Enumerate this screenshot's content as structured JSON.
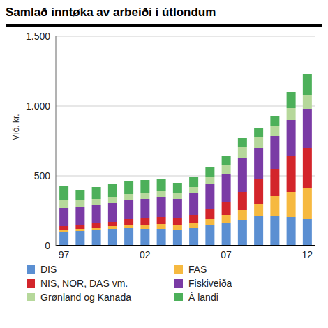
{
  "chart_data": {
    "type": "bar",
    "title": "Samlað inntøka av arbeiði í útlondum",
    "y_label": "Mió. kr.",
    "stacked": true,
    "grid": true,
    "legend": "bottom",
    "categories": [
      "97",
      null,
      null,
      null,
      null,
      "02",
      null,
      null,
      null,
      null,
      "07",
      null,
      null,
      null,
      null,
      "12"
    ],
    "ylim": [
      0,
      1500
    ],
    "yticks": [
      0,
      500,
      {
        "value": 1000,
        "label": "1.000"
      },
      {
        "value": 1500,
        "label": "1.500"
      }
    ],
    "series": [
      {
        "name": "DIS",
        "color": "#5b8fd2",
        "values": [
          100,
          105,
          115,
          120,
          125,
          120,
          120,
          115,
          125,
          145,
          160,
          185,
          210,
          215,
          205,
          190
        ]
      },
      {
        "name": "FAS",
        "color": "#f6b940",
        "values": [
          15,
          15,
          15,
          20,
          25,
          30,
          35,
          35,
          40,
          45,
          60,
          70,
          90,
          140,
          180,
          220
        ]
      },
      {
        "name": "NIS, NOR, DAS vm.",
        "color": "#d3252b",
        "values": [
          25,
          25,
          30,
          30,
          40,
          45,
          50,
          50,
          55,
          70,
          90,
          130,
          175,
          195,
          255,
          290
        ]
      },
      {
        "name": "Fiskiveiða",
        "color": "#7a3ba5",
        "values": [
          130,
          130,
          130,
          135,
          135,
          140,
          145,
          135,
          160,
          180,
          205,
          240,
          225,
          235,
          260,
          280
        ]
      },
      {
        "name": "Grønland og Kanada",
        "color": "#b6d89b",
        "values": [
          60,
          50,
          45,
          45,
          45,
          45,
          45,
          40,
          40,
          50,
          60,
          80,
          80,
          75,
          85,
          100
        ]
      },
      {
        "name": "Á landi",
        "color": "#4db05a",
        "values": [
          100,
          75,
          85,
          90,
          95,
          90,
          80,
          75,
          70,
          70,
          65,
          65,
          60,
          70,
          115,
          150
        ]
      }
    ]
  }
}
